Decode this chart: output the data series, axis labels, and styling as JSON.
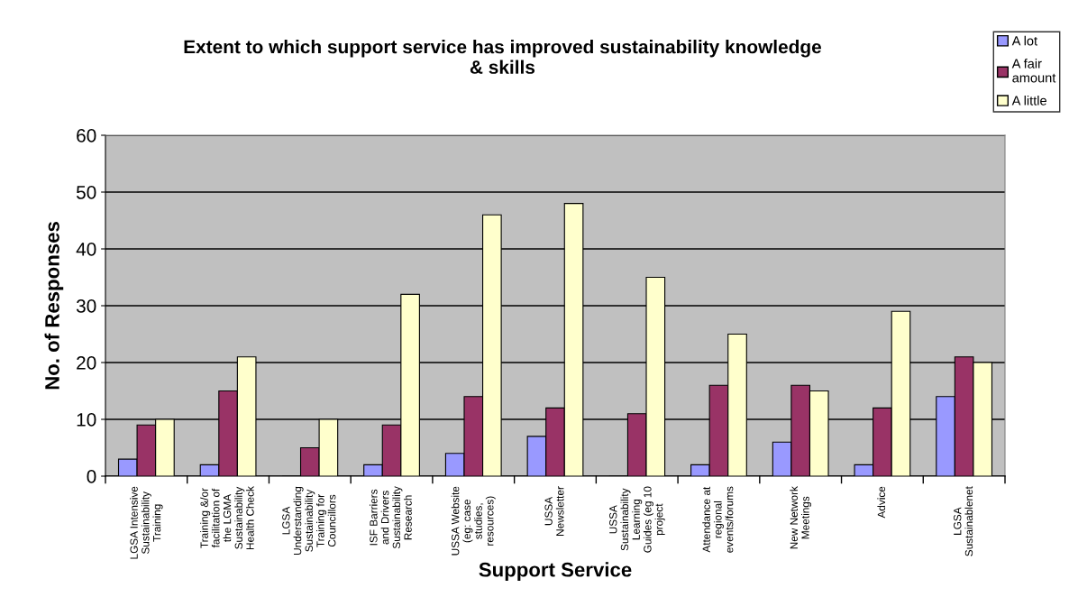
{
  "chart_data": {
    "type": "bar",
    "title": "Extent to which support service has improved sustainability knowledge\n& skills",
    "xlabel": "Support Service",
    "ylabel": "No. of Responses",
    "categories": [
      "LGSA Intensive\nSustainability\nTraining",
      "Training &/or\nfacilitation of\nthe LGMA\nSustainability\nHealth Check",
      "LGSA\nUnderstanding\nSustainability\nTraining for\nCouncillors",
      "ISF Barriers\nand Drivers\nSustainability\nResearch",
      "USSA Website\n(eg: case\nstudies,\nresources)",
      "USSA\nNewsletter",
      "USSA\nSustainability\nLearning\nGuides (eg 10\nproject",
      "Attendance at\nregional\nevents/forums",
      "New Network\nMeetings",
      "Advice",
      "LGSA\nSustainablenet"
    ],
    "series": [
      {
        "name": "A lot",
        "color": "#9999ff",
        "values": [
          3,
          2,
          0,
          2,
          4,
          7,
          0,
          2,
          6,
          2,
          14
        ]
      },
      {
        "name": "A fair\namount",
        "color": "#993366",
        "values": [
          9,
          15,
          5,
          9,
          14,
          12,
          11,
          16,
          16,
          12,
          21
        ]
      },
      {
        "name": "A little",
        "color": "#ffffcc",
        "values": [
          10,
          21,
          10,
          32,
          46,
          48,
          35,
          25,
          15,
          29,
          20
        ]
      }
    ],
    "ylim": [
      0,
      60
    ],
    "yticks": [
      0,
      10,
      20,
      30,
      40,
      50,
      60
    ],
    "grid": "y",
    "legend": "top right"
  }
}
